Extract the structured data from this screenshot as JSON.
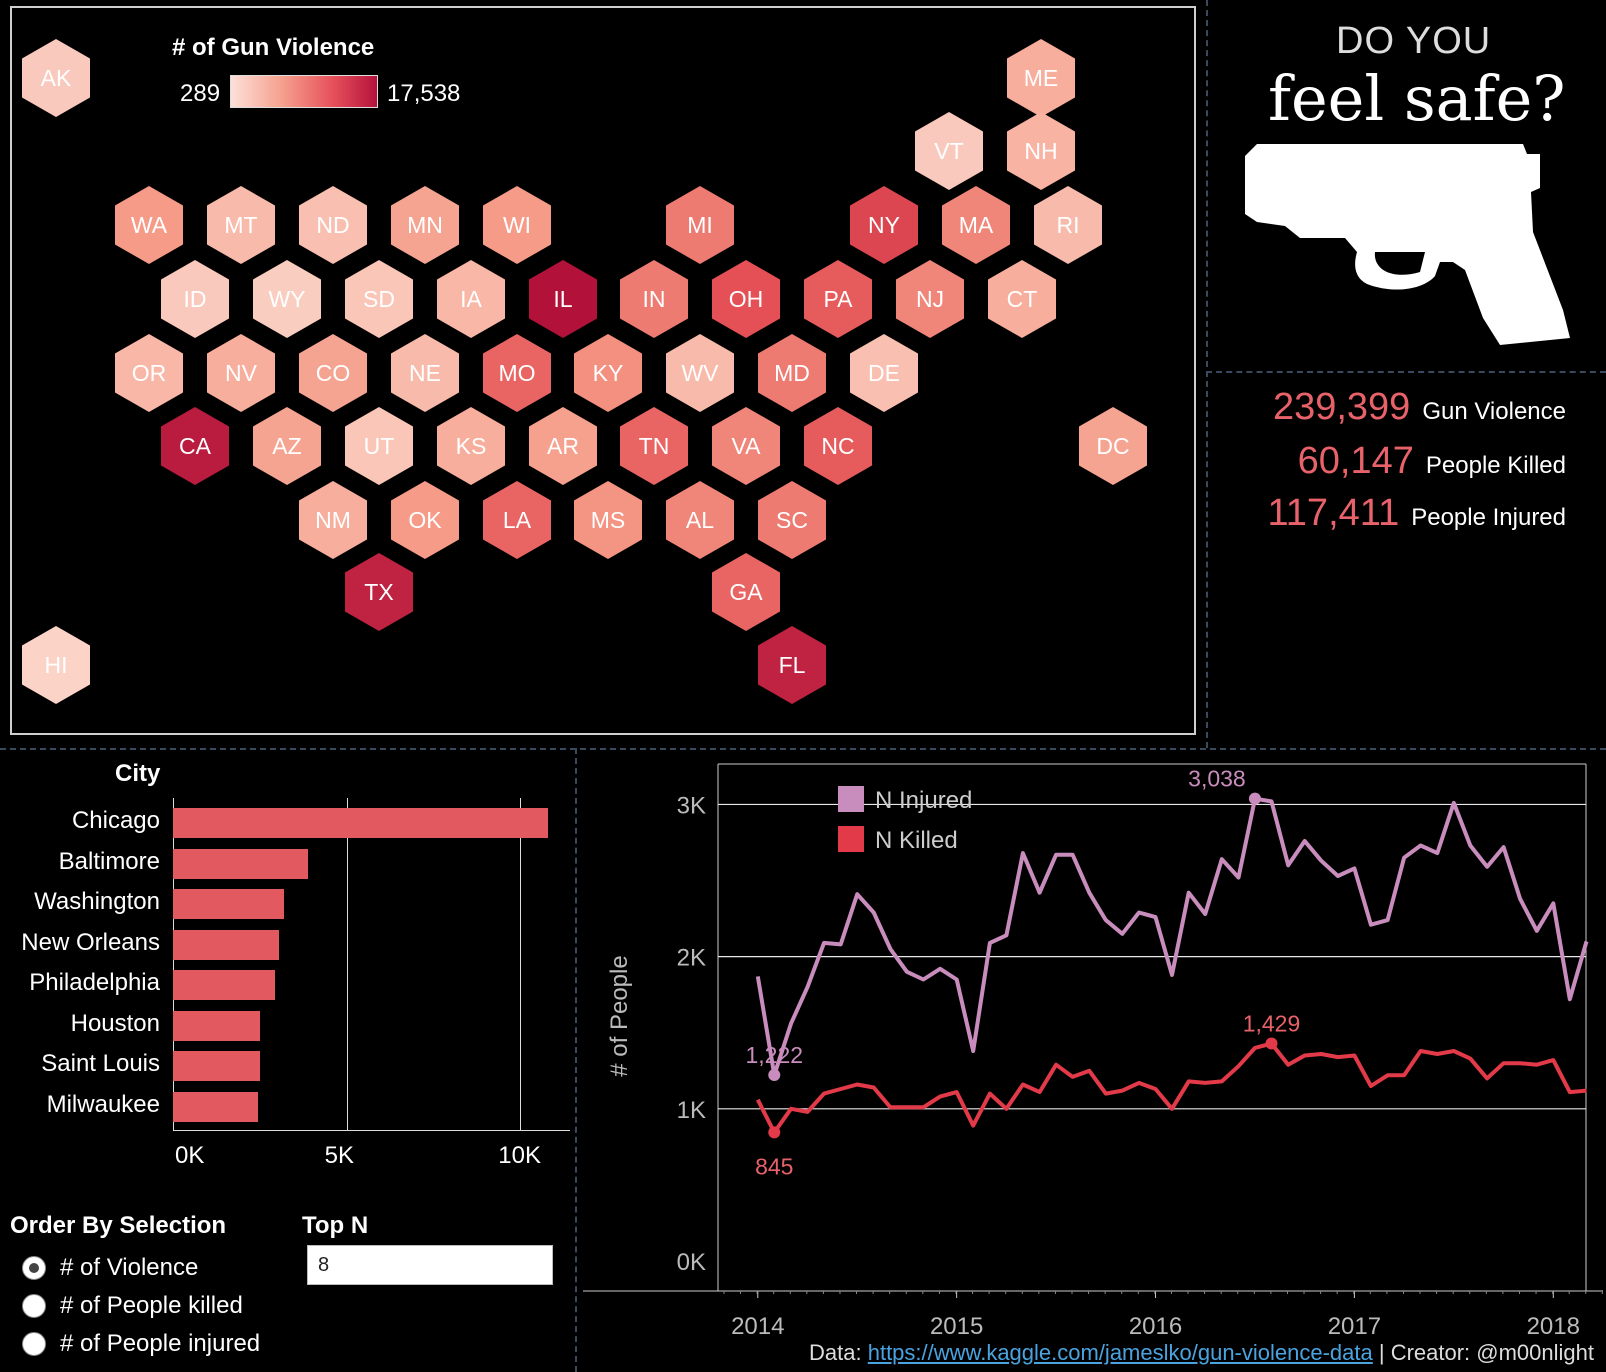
{
  "map": {
    "legend_title": "# of Gun Violence",
    "legend_min": "289",
    "legend_max": "17,538",
    "states": [
      {
        "abbr": "AK",
        "level": 0.1
      },
      {
        "abbr": "ME",
        "level": 0.25
      },
      {
        "abbr": "VT",
        "level": 0.1
      },
      {
        "abbr": "NH",
        "level": 0.22
      },
      {
        "abbr": "WA",
        "level": 0.35
      },
      {
        "abbr": "MT",
        "level": 0.18
      },
      {
        "abbr": "ND",
        "level": 0.15
      },
      {
        "abbr": "MN",
        "level": 0.3
      },
      {
        "abbr": "WI",
        "level": 0.35
      },
      {
        "abbr": "MI",
        "level": 0.5
      },
      {
        "abbr": "NY",
        "level": 0.75
      },
      {
        "abbr": "MA",
        "level": 0.45
      },
      {
        "abbr": "RI",
        "level": 0.18
      },
      {
        "abbr": "ID",
        "level": 0.1
      },
      {
        "abbr": "WY",
        "level": 0.08
      },
      {
        "abbr": "SD",
        "level": 0.12
      },
      {
        "abbr": "IA",
        "level": 0.2
      },
      {
        "abbr": "IL",
        "level": 1.0
      },
      {
        "abbr": "IN",
        "level": 0.5
      },
      {
        "abbr": "OH",
        "level": 0.7
      },
      {
        "abbr": "PA",
        "level": 0.65
      },
      {
        "abbr": "NJ",
        "level": 0.45
      },
      {
        "abbr": "CT",
        "level": 0.25
      },
      {
        "abbr": "OR",
        "level": 0.2
      },
      {
        "abbr": "NV",
        "level": 0.25
      },
      {
        "abbr": "CO",
        "level": 0.3
      },
      {
        "abbr": "NE",
        "level": 0.18
      },
      {
        "abbr": "MO",
        "level": 0.6
      },
      {
        "abbr": "KY",
        "level": 0.4
      },
      {
        "abbr": "WV",
        "level": 0.18
      },
      {
        "abbr": "MD",
        "level": 0.5
      },
      {
        "abbr": "DE",
        "level": 0.15
      },
      {
        "abbr": "CA",
        "level": 0.95
      },
      {
        "abbr": "AZ",
        "level": 0.3
      },
      {
        "abbr": "UT",
        "level": 0.12
      },
      {
        "abbr": "KS",
        "level": 0.25
      },
      {
        "abbr": "AR",
        "level": 0.32
      },
      {
        "abbr": "TN",
        "level": 0.6
      },
      {
        "abbr": "VA",
        "level": 0.45
      },
      {
        "abbr": "NC",
        "level": 0.65
      },
      {
        "abbr": "DC",
        "level": 0.3
      },
      {
        "abbr": "NM",
        "level": 0.25
      },
      {
        "abbr": "OK",
        "level": 0.35
      },
      {
        "abbr": "LA",
        "level": 0.6
      },
      {
        "abbr": "MS",
        "level": 0.38
      },
      {
        "abbr": "AL",
        "level": 0.45
      },
      {
        "abbr": "SC",
        "level": 0.5
      },
      {
        "abbr": "TX",
        "level": 0.92
      },
      {
        "abbr": "GA",
        "level": 0.6
      },
      {
        "abbr": "HI",
        "level": 0.05
      },
      {
        "abbr": "FL",
        "level": 0.92
      }
    ]
  },
  "promo": {
    "line1": "DO YOU",
    "line2": "feel safe?"
  },
  "kpis": [
    {
      "value": "239,399",
      "label": "Gun Violence"
    },
    {
      "value": "60,147",
      "label": "People Killed"
    },
    {
      "value": "117,411",
      "label": "People Injured"
    }
  ],
  "city_chart": {
    "type": "bar",
    "header": "City",
    "categories": [
      "Chicago",
      "Baltimore",
      "Washington",
      "New Orleans",
      "Philadelphia",
      "Houston",
      "Saint Louis",
      "Milwaukee"
    ],
    "values": [
      10800,
      3900,
      3200,
      3050,
      2950,
      2500,
      2500,
      2450
    ],
    "xlim": [
      0,
      11000
    ],
    "x_ticks": [
      "0K",
      "5K",
      "10K"
    ],
    "x_tick_values": [
      0,
      5000,
      10000
    ]
  },
  "controls": {
    "order_title": "Order By Selection",
    "options": [
      {
        "label": "# of Violence",
        "selected": true
      },
      {
        "label": "# of People killed",
        "selected": false
      },
      {
        "label": "# of People injured",
        "selected": false
      }
    ],
    "topn_title": "Top N",
    "topn_value": "8"
  },
  "chart_data": {
    "type": "line",
    "ylabel": "# of People",
    "ylim": [
      0,
      3200
    ],
    "y_ticks": [
      "0K",
      "1K",
      "2K",
      "3K"
    ],
    "y_tick_values": [
      0,
      1000,
      2000,
      3000
    ],
    "x_ticks": [
      "2014",
      "2015",
      "2016",
      "2017",
      "2018"
    ],
    "xlim": [
      2013.8,
      2018.25
    ],
    "legend": "top-left",
    "series": [
      {
        "name": "N Injured",
        "color": "#c98dbd",
        "x": [
          2014.0,
          2014.083,
          2014.167,
          2014.25,
          2014.333,
          2014.417,
          2014.5,
          2014.583,
          2014.667,
          2014.75,
          2014.833,
          2014.917,
          2015.0,
          2015.083,
          2015.167,
          2015.25,
          2015.333,
          2015.417,
          2015.5,
          2015.583,
          2015.667,
          2015.75,
          2015.833,
          2015.917,
          2016.0,
          2016.083,
          2016.167,
          2016.25,
          2016.333,
          2016.417,
          2016.5,
          2016.583,
          2016.667,
          2016.75,
          2016.833,
          2016.917,
          2017.0,
          2017.083,
          2017.167,
          2017.25,
          2017.333,
          2017.417,
          2017.5,
          2017.583,
          2017.667,
          2017.75,
          2017.833,
          2017.917,
          2018.0,
          2018.083,
          2018.167
        ],
        "y": [
          1870,
          1222,
          1560,
          1800,
          2090,
          2080,
          2410,
          2290,
          2050,
          1900,
          1850,
          1920,
          1850,
          1380,
          2090,
          2140,
          2680,
          2420,
          2670,
          2670,
          2420,
          2240,
          2150,
          2290,
          2260,
          1880,
          2420,
          2280,
          2640,
          2520,
          3038,
          3020,
          2600,
          2760,
          2630,
          2530,
          2580,
          2210,
          2240,
          2650,
          2730,
          2680,
          3010,
          2730,
          2590,
          2720,
          2380,
          2170,
          2350,
          1720,
          2100
        ]
      },
      {
        "name": "N Killed",
        "color": "#e23a48",
        "x": [
          2014.0,
          2014.083,
          2014.167,
          2014.25,
          2014.333,
          2014.417,
          2014.5,
          2014.583,
          2014.667,
          2014.75,
          2014.833,
          2014.917,
          2015.0,
          2015.083,
          2015.167,
          2015.25,
          2015.333,
          2015.417,
          2015.5,
          2015.583,
          2015.667,
          2015.75,
          2015.833,
          2015.917,
          2016.0,
          2016.083,
          2016.167,
          2016.25,
          2016.333,
          2016.417,
          2016.5,
          2016.583,
          2016.667,
          2016.75,
          2016.833,
          2016.917,
          2017.0,
          2017.083,
          2017.167,
          2017.25,
          2017.333,
          2017.417,
          2017.5,
          2017.583,
          2017.667,
          2017.75,
          2017.833,
          2017.917,
          2018.0,
          2018.083,
          2018.167
        ],
        "y": [
          1060,
          845,
          1000,
          980,
          1100,
          1130,
          1160,
          1140,
          1010,
          1010,
          1010,
          1080,
          1110,
          890,
          1100,
          1000,
          1160,
          1110,
          1290,
          1210,
          1250,
          1100,
          1120,
          1170,
          1130,
          1000,
          1180,
          1170,
          1180,
          1280,
          1400,
          1429,
          1290,
          1350,
          1360,
          1340,
          1350,
          1150,
          1220,
          1220,
          1380,
          1360,
          1380,
          1330,
          1200,
          1300,
          1300,
          1290,
          1320,
          1110,
          1120
        ]
      }
    ],
    "annotations": [
      {
        "text": "3,038",
        "x": 2016.5,
        "y": 3038,
        "series": 0
      },
      {
        "text": "1,222",
        "x": 2014.083,
        "y": 1222,
        "series": 0
      },
      {
        "text": "1,429",
        "x": 2016.583,
        "y": 1429,
        "series": 1
      },
      {
        "text": "845",
        "x": 2014.083,
        "y": 845,
        "series": 1
      }
    ]
  },
  "footer": {
    "data_prefix": "Data:",
    "link": "https://www.kaggle.com/jameslko/gun-violence-data",
    "creator": " | Creator: @m00nlight"
  }
}
